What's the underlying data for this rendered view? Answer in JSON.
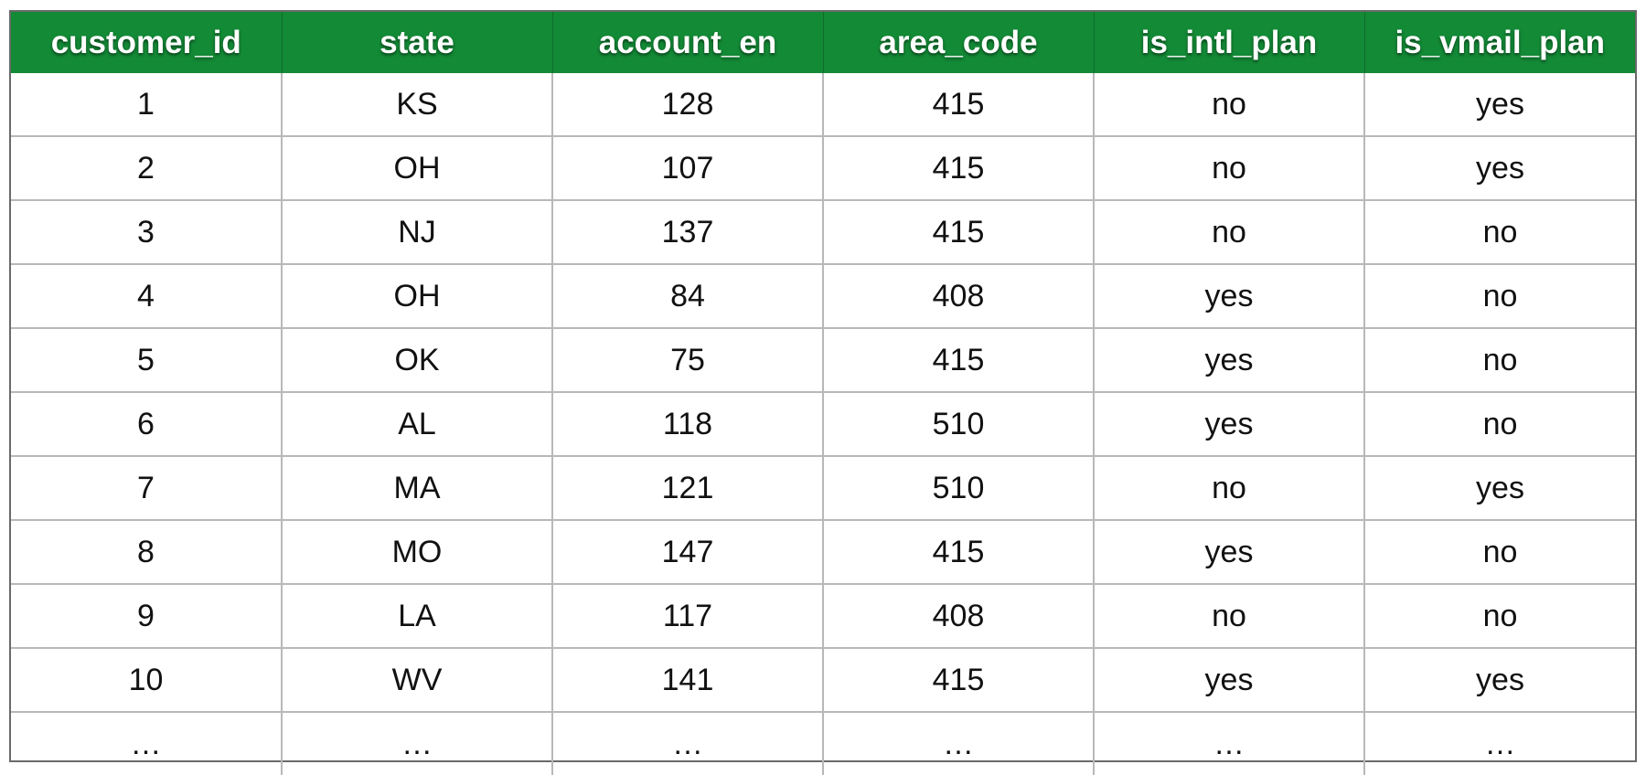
{
  "table": {
    "header_color": "#138a36",
    "columns": [
      "customer_id",
      "state",
      "account_en",
      "area_code",
      "is_intl_plan",
      "is_vmail_plan"
    ],
    "rows": [
      [
        "1",
        "KS",
        "128",
        "415",
        "no",
        "yes"
      ],
      [
        "2",
        "OH",
        "107",
        "415",
        "no",
        "yes"
      ],
      [
        "3",
        "NJ",
        "137",
        "415",
        "no",
        "no"
      ],
      [
        "4",
        "OH",
        "84",
        "408",
        "yes",
        "no"
      ],
      [
        "5",
        "OK",
        "75",
        "415",
        "yes",
        "no"
      ],
      [
        "6",
        "AL",
        "118",
        "510",
        "yes",
        "no"
      ],
      [
        "7",
        "MA",
        "121",
        "510",
        "no",
        "yes"
      ],
      [
        "8",
        "MO",
        "147",
        "415",
        "yes",
        "no"
      ],
      [
        "9",
        "LA",
        "117",
        "408",
        "no",
        "no"
      ],
      [
        "10",
        "WV",
        "141",
        "415",
        "yes",
        "yes"
      ],
      [
        "…",
        "…",
        "…",
        "…",
        "…",
        "…"
      ]
    ]
  }
}
